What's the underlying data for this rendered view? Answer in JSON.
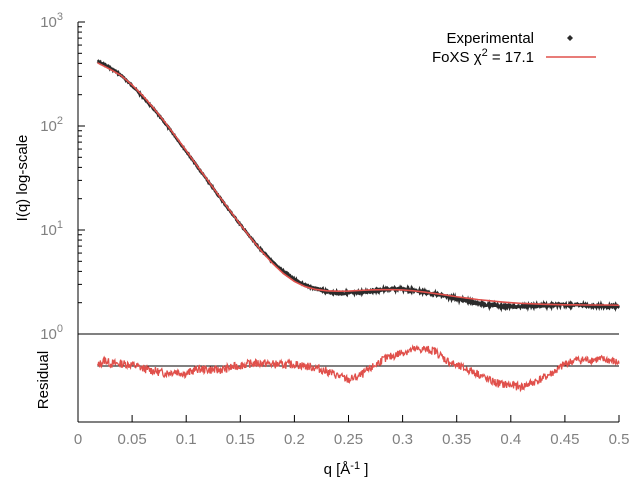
{
  "chart_data": [
    {
      "type": "line",
      "role": "main",
      "xlabel": "q [Å⁻¹]",
      "ylabel": "I(q) log-scale",
      "xlim": [
        0,
        0.5
      ],
      "ylim": [
        1,
        1000
      ],
      "yscale": "log",
      "grid": false,
      "legend_position": "top-right",
      "y_tick_labels": [
        {
          "base": "10",
          "exp": "0",
          "value": 1
        },
        {
          "base": "10",
          "exp": "1",
          "value": 10
        },
        {
          "base": "10",
          "exp": "2",
          "value": 100
        },
        {
          "base": "10",
          "exp": "3",
          "value": 1000
        }
      ],
      "series": [
        {
          "name": "Experimental",
          "style": "points",
          "color": "#2b2b2b",
          "x": [
            0.018,
            0.025,
            0.03,
            0.035,
            0.04,
            0.05,
            0.06,
            0.07,
            0.08,
            0.09,
            0.1,
            0.11,
            0.12,
            0.13,
            0.14,
            0.15,
            0.16,
            0.17,
            0.18,
            0.19,
            0.2,
            0.21,
            0.22,
            0.23,
            0.24,
            0.25,
            0.26,
            0.27,
            0.28,
            0.29,
            0.3,
            0.31,
            0.32,
            0.33,
            0.34,
            0.35,
            0.36,
            0.37,
            0.38,
            0.39,
            0.4,
            0.41,
            0.42,
            0.43,
            0.44,
            0.45,
            0.46,
            0.47,
            0.48,
            0.49,
            0.5
          ],
          "y": [
            420,
            385,
            360,
            335,
            305,
            245,
            190,
            145,
            108,
            79,
            57,
            41,
            29.5,
            21.3,
            15.4,
            11.3,
            8.3,
            6.3,
            4.9,
            4.0,
            3.35,
            2.95,
            2.7,
            2.55,
            2.48,
            2.46,
            2.5,
            2.58,
            2.66,
            2.72,
            2.7,
            2.63,
            2.53,
            2.42,
            2.3,
            2.18,
            2.07,
            1.97,
            1.9,
            1.86,
            1.84,
            1.84,
            1.86,
            1.88,
            1.9,
            1.9,
            1.9,
            1.88,
            1.86,
            1.85,
            1.84
          ]
        },
        {
          "name": "FoXS χ² = 17.1",
          "legend_base": "FoXS χ",
          "legend_sup": "2",
          "legend_tail": " = 17.1",
          "style": "line",
          "color": "#e0504b",
          "x": [
            0.018,
            0.03,
            0.04,
            0.05,
            0.06,
            0.07,
            0.08,
            0.09,
            0.1,
            0.11,
            0.12,
            0.13,
            0.14,
            0.15,
            0.16,
            0.17,
            0.18,
            0.19,
            0.2,
            0.21,
            0.22,
            0.23,
            0.24,
            0.25,
            0.26,
            0.27,
            0.28,
            0.29,
            0.3,
            0.31,
            0.32,
            0.33,
            0.34,
            0.35,
            0.36,
            0.37,
            0.38,
            0.39,
            0.4,
            0.41,
            0.42,
            0.43,
            0.44,
            0.45,
            0.46,
            0.47,
            0.48,
            0.49,
            0.5
          ],
          "y": [
            405,
            350,
            305,
            248,
            195,
            148,
            110,
            80,
            58,
            41.5,
            30,
            21.5,
            15.6,
            11.3,
            8.3,
            6.2,
            4.75,
            3.8,
            3.2,
            2.85,
            2.68,
            2.6,
            2.58,
            2.59,
            2.62,
            2.65,
            2.67,
            2.67,
            2.65,
            2.6,
            2.53,
            2.45,
            2.37,
            2.28,
            2.21,
            2.14,
            2.09,
            2.04,
            2.0,
            1.97,
            1.95,
            1.93,
            1.92,
            1.91,
            1.91,
            1.9,
            1.9,
            1.9,
            1.89
          ]
        }
      ]
    },
    {
      "type": "line",
      "role": "residual",
      "ylabel": "Residual",
      "xlabel": "q [Å⁻¹]",
      "xlim": [
        0,
        0.5
      ],
      "x_ticks": [
        "0",
        "0.05",
        "0.1",
        "0.15",
        "0.2",
        "0.25",
        "0.3",
        "0.35",
        "0.4",
        "0.45",
        "0.5"
      ],
      "ylim": [
        -5,
        5
      ],
      "baseline": 0,
      "series": [
        {
          "name": "",
          "color": "#e0504b",
          "x": [
            0.018,
            0.025,
            0.03,
            0.04,
            0.05,
            0.06,
            0.07,
            0.08,
            0.09,
            0.1,
            0.11,
            0.12,
            0.13,
            0.14,
            0.15,
            0.16,
            0.17,
            0.18,
            0.19,
            0.2,
            0.21,
            0.22,
            0.23,
            0.24,
            0.25,
            0.26,
            0.27,
            0.28,
            0.29,
            0.3,
            0.31,
            0.32,
            0.33,
            0.34,
            0.35,
            0.36,
            0.37,
            0.38,
            0.39,
            0.4,
            0.41,
            0.42,
            0.43,
            0.44,
            0.45,
            0.46,
            0.47,
            0.48,
            0.49,
            0.5
          ],
          "y": [
            0.0,
            1.0,
            0.4,
            0.4,
            0.2,
            -0.4,
            -0.8,
            -1.2,
            -0.9,
            -1.3,
            -0.5,
            -0.6,
            -0.7,
            -0.3,
            0.1,
            0.4,
            0.5,
            0.3,
            0.2,
            0.3,
            0.0,
            -0.3,
            -0.9,
            -1.6,
            -2.3,
            -1.7,
            -0.5,
            0.9,
            1.6,
            2.3,
            2.7,
            2.8,
            2.5,
            1.0,
            0.0,
            -0.6,
            -1.3,
            -2.4,
            -3.0,
            -3.2,
            -3.5,
            -2.8,
            -2.0,
            -1.0,
            0.3,
            1.0,
            1.0,
            1.1,
            1.0,
            0.5
          ]
        }
      ]
    }
  ]
}
